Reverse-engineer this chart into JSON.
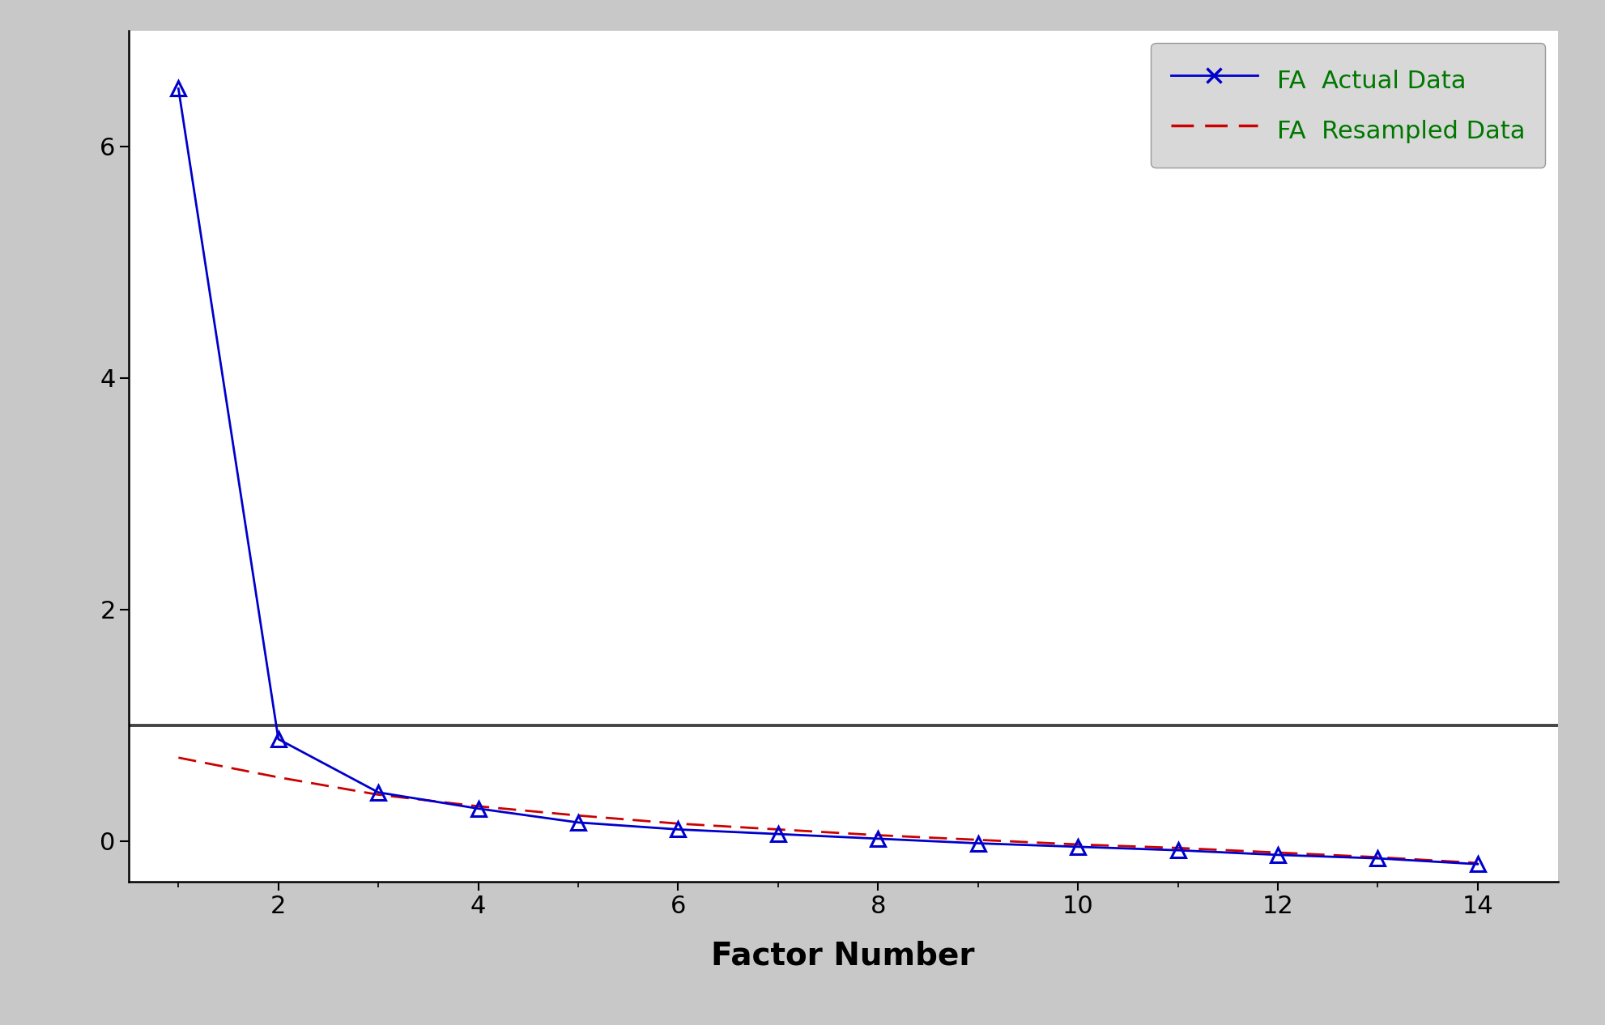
{
  "fa_actual_x": [
    1,
    2,
    3,
    4,
    5,
    6,
    7,
    8,
    9,
    10,
    11,
    12,
    13,
    14
  ],
  "fa_actual_y": [
    6.5,
    0.88,
    0.42,
    0.28,
    0.16,
    0.1,
    0.06,
    0.02,
    -0.02,
    -0.05,
    -0.08,
    -0.12,
    -0.15,
    -0.2
  ],
  "fa_resampled_x": [
    1,
    2,
    3,
    4,
    5,
    6,
    7,
    8,
    9,
    10,
    11,
    12,
    13,
    14
  ],
  "fa_resampled_y": [
    0.72,
    0.55,
    0.4,
    0.3,
    0.22,
    0.15,
    0.1,
    0.05,
    0.01,
    -0.03,
    -0.06,
    -0.1,
    -0.14,
    -0.19
  ],
  "hline_y": 1.0,
  "xlim": [
    0.5,
    14.8
  ],
  "ylim": [
    -0.35,
    7.0
  ],
  "xticks_major": [
    2,
    4,
    6,
    8,
    10,
    12,
    14
  ],
  "xticks_minor": [
    1,
    3,
    5,
    7,
    9,
    11,
    13
  ],
  "yticks": [
    0,
    2,
    4,
    6
  ],
  "xlabel": "Factor Number",
  "actual_color": "#0000cc",
  "resampled_color": "#cc0000",
  "hline_color": "#444444",
  "legend_label_actual": "FA  Actual Data",
  "legend_label_resampled": "FA  Resampled Data",
  "legend_text_color": "#007700",
  "bg_color": "#c8c8c8",
  "plot_bg_color": "#ffffff",
  "marker_size": 13,
  "line_width": 2.0,
  "xlabel_fontsize": 28,
  "tick_fontsize": 22,
  "legend_fontsize": 22,
  "fig_width": 19.83,
  "fig_height": 12.66,
  "dpi": 100
}
